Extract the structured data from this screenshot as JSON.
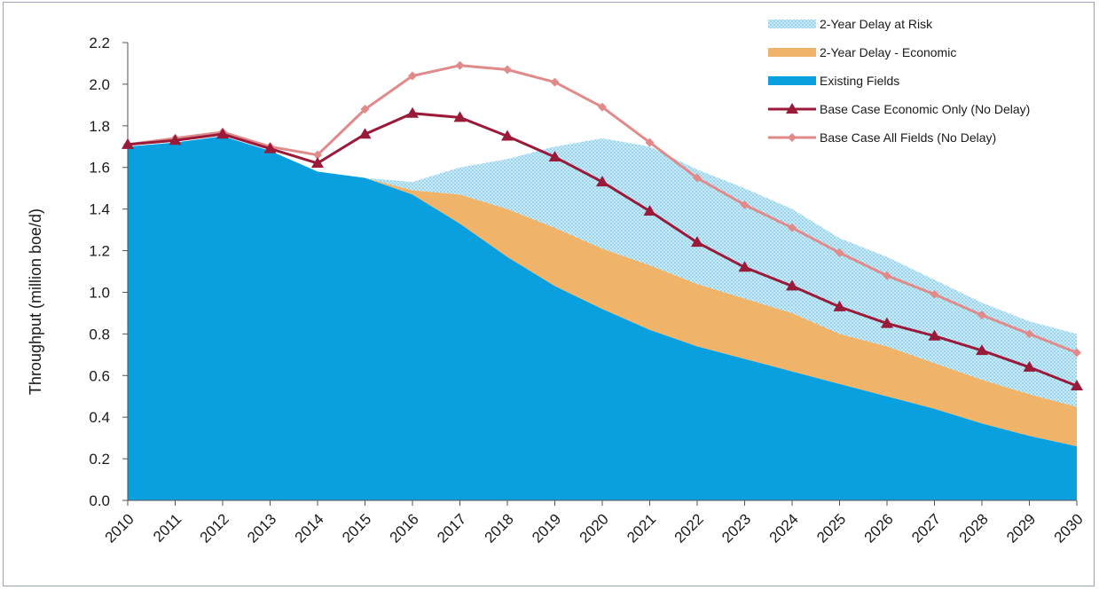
{
  "chart_data": {
    "type": "area",
    "ylabel": "Throughput (million boe/d)",
    "xlabel": "",
    "ylim": [
      0,
      2.2
    ],
    "yticks": [
      "0.0",
      "0.2",
      "0.4",
      "0.6",
      "0.8",
      "1.0",
      "1.2",
      "1.4",
      "1.6",
      "1.8",
      "2.0",
      "2.2"
    ],
    "x": [
      "2010",
      "2011",
      "2012",
      "2013",
      "2014",
      "2015",
      "2016",
      "2017",
      "2018",
      "2019",
      "2020",
      "2021",
      "2022",
      "2023",
      "2024",
      "2025",
      "2026",
      "2027",
      "2028",
      "2029",
      "2030"
    ],
    "legend_position": "top-right",
    "grid": false,
    "stacked_areas": [
      {
        "name": "Existing Fields",
        "color": "#0aa0e0",
        "values": [
          1.7,
          1.72,
          1.75,
          1.68,
          1.58,
          1.55,
          1.47,
          1.33,
          1.17,
          1.03,
          0.92,
          0.82,
          0.74,
          0.68,
          0.62,
          0.56,
          0.5,
          0.44,
          0.37,
          0.31,
          0.26
        ]
      },
      {
        "name": "2-Year Delay - Economic",
        "color": "#f0b36a",
        "values": [
          0.0,
          0.0,
          0.0,
          0.0,
          0.0,
          0.0,
          0.02,
          0.14,
          0.23,
          0.28,
          0.29,
          0.31,
          0.3,
          0.29,
          0.28,
          0.24,
          0.24,
          0.22,
          0.21,
          0.2,
          0.19
        ]
      },
      {
        "name": "2-Year Delay at Risk",
        "color": "#bfe6f5",
        "values": [
          0.0,
          0.0,
          0.0,
          0.0,
          0.0,
          0.0,
          0.04,
          0.13,
          0.24,
          0.39,
          0.53,
          0.57,
          0.55,
          0.53,
          0.5,
          0.46,
          0.43,
          0.4,
          0.37,
          0.35,
          0.35
        ]
      }
    ],
    "lines": [
      {
        "name": "Base Case Economic Only (No Delay)",
        "color": "#9a1a3a",
        "marker": "triangle",
        "values": [
          1.71,
          1.73,
          1.76,
          1.69,
          1.62,
          1.76,
          1.86,
          1.84,
          1.75,
          1.65,
          1.53,
          1.39,
          1.24,
          1.12,
          1.03,
          0.93,
          0.85,
          0.79,
          0.72,
          0.64,
          0.55
        ]
      },
      {
        "name": "Base Case All Fields (No Delay)",
        "color": "#e08a8a",
        "marker": "diamond",
        "values": [
          1.71,
          1.74,
          1.77,
          1.7,
          1.66,
          1.88,
          2.04,
          2.09,
          2.07,
          2.01,
          1.89,
          1.72,
          1.55,
          1.42,
          1.31,
          1.19,
          1.08,
          0.99,
          0.89,
          0.8,
          0.71
        ]
      }
    ],
    "legend": [
      {
        "label": "2-Year Delay at Risk",
        "kind": "area-hatched",
        "color": "#bfe6f5"
      },
      {
        "label": "2-Year Delay - Economic",
        "kind": "area",
        "color": "#f0b36a"
      },
      {
        "label": "Existing Fields",
        "kind": "area",
        "color": "#0aa0e0"
      },
      {
        "label": "Base Case Economic Only (No Delay)",
        "kind": "line-triangle",
        "color": "#9a1a3a"
      },
      {
        "label": "Base Case All Fields (No Delay)",
        "kind": "line-diamond",
        "color": "#e08a8a"
      }
    ]
  }
}
